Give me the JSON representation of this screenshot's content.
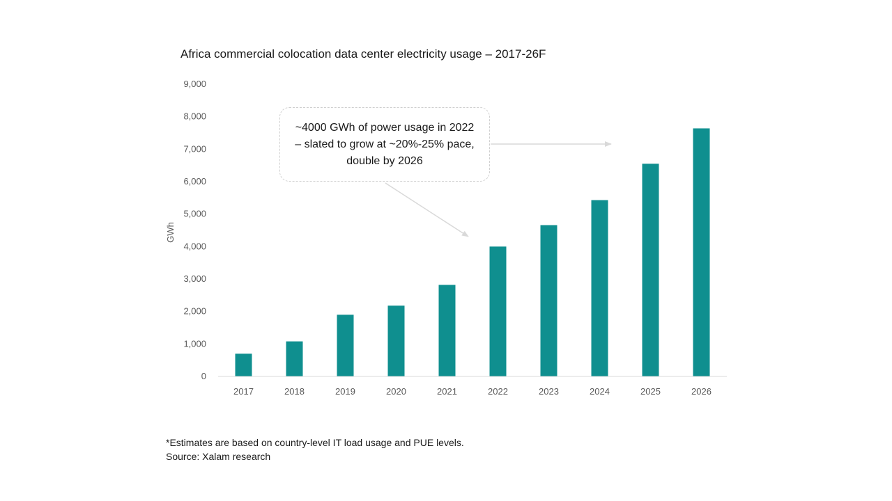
{
  "title": "Africa commercial colocation data center electricity usage – 2017-26F",
  "annotation": "~4000 GWh of power usage in 2022 – slated to grow at ~20%-25% pace, double by 2026",
  "footnotes": {
    "note": "*Estimates are based on country-level IT load usage and PUE levels.",
    "source": "Source: Xalam research"
  },
  "colors": {
    "bar": "#0f8f8f",
    "arrow": "#d9d9d9",
    "axis": "#d9d9d9"
  },
  "chart_data": {
    "type": "bar",
    "title": "Africa commercial colocation data center electricity usage – 2017-26F",
    "xlabel": "",
    "ylabel": "GWh",
    "ylim": [
      0,
      9000
    ],
    "yticks": [
      0,
      1000,
      2000,
      3000,
      4000,
      5000,
      6000,
      7000,
      8000,
      9000
    ],
    "ytick_labels": [
      "0",
      "1,000",
      "2,000",
      "3,000",
      "4,000",
      "5,000",
      "6,000",
      "7,000",
      "8,000",
      "9,000"
    ],
    "grid": false,
    "legend": "none",
    "categories": [
      "2017",
      "2018",
      "2019",
      "2020",
      "2021",
      "2022",
      "2023",
      "2024",
      "2025",
      "2026"
    ],
    "values": [
      700,
      1080,
      1900,
      2180,
      2820,
      4000,
      4660,
      5430,
      6550,
      7640
    ]
  }
}
